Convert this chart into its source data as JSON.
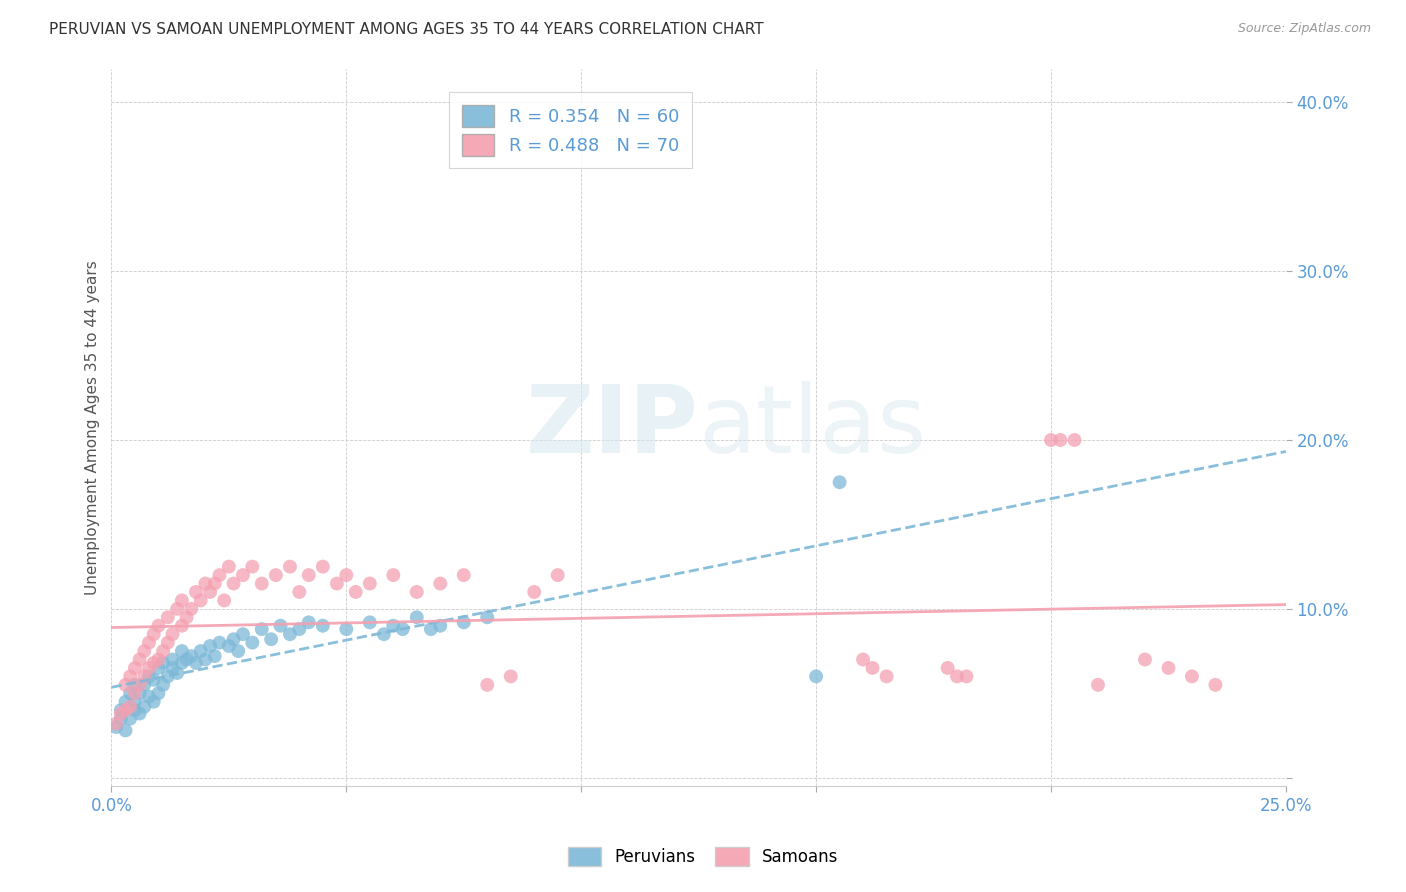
{
  "title": "PERUVIAN VS SAMOAN UNEMPLOYMENT AMONG AGES 35 TO 44 YEARS CORRELATION CHART",
  "source": "Source: ZipAtlas.com",
  "ylabel": "Unemployment Among Ages 35 to 44 years",
  "xlim": [
    0.0,
    0.25
  ],
  "ylim": [
    -0.005,
    0.42
  ],
  "x_ticks": [
    0.0,
    0.05,
    0.1,
    0.15,
    0.2,
    0.25
  ],
  "x_tick_labels": [
    "0.0%",
    "",
    "",
    "",
    "",
    "25.0%"
  ],
  "y_ticks": [
    0.0,
    0.1,
    0.2,
    0.3,
    0.4
  ],
  "y_tick_labels": [
    "",
    "10.0%",
    "20.0%",
    "30.0%",
    "40.0%"
  ],
  "peruvian_color": "#7db8d8",
  "samoan_color": "#f4a0b0",
  "peruvian_R": 0.354,
  "peruvian_N": 60,
  "samoan_R": 0.488,
  "samoan_N": 70,
  "watermark_zip": "ZIP",
  "watermark_atlas": "atlas",
  "background_color": "#ffffff",
  "peruvian_x": [
    0.001,
    0.002,
    0.002,
    0.003,
    0.003,
    0.004,
    0.004,
    0.005,
    0.005,
    0.005,
    0.006,
    0.006,
    0.007,
    0.007,
    0.008,
    0.008,
    0.009,
    0.009,
    0.01,
    0.01,
    0.011,
    0.011,
    0.012,
    0.013,
    0.013,
    0.014,
    0.015,
    0.015,
    0.016,
    0.017,
    0.018,
    0.019,
    0.02,
    0.021,
    0.022,
    0.023,
    0.025,
    0.026,
    0.027,
    0.028,
    0.03,
    0.032,
    0.034,
    0.036,
    0.038,
    0.04,
    0.042,
    0.045,
    0.05,
    0.055,
    0.058,
    0.06,
    0.062,
    0.065,
    0.068,
    0.07,
    0.075,
    0.08,
    0.15,
    0.155
  ],
  "peruvian_y": [
    0.03,
    0.035,
    0.04,
    0.028,
    0.045,
    0.035,
    0.05,
    0.04,
    0.045,
    0.055,
    0.038,
    0.05,
    0.042,
    0.055,
    0.048,
    0.06,
    0.045,
    0.058,
    0.05,
    0.065,
    0.055,
    0.068,
    0.06,
    0.065,
    0.07,
    0.062,
    0.068,
    0.075,
    0.07,
    0.072,
    0.068,
    0.075,
    0.07,
    0.078,
    0.072,
    0.08,
    0.078,
    0.082,
    0.075,
    0.085,
    0.08,
    0.088,
    0.082,
    0.09,
    0.085,
    0.088,
    0.092,
    0.09,
    0.088,
    0.092,
    0.085,
    0.09,
    0.088,
    0.095,
    0.088,
    0.09,
    0.092,
    0.095,
    0.06,
    0.175
  ],
  "samoan_x": [
    0.001,
    0.002,
    0.003,
    0.003,
    0.004,
    0.004,
    0.005,
    0.005,
    0.006,
    0.006,
    0.007,
    0.007,
    0.008,
    0.008,
    0.009,
    0.009,
    0.01,
    0.01,
    0.011,
    0.012,
    0.012,
    0.013,
    0.014,
    0.015,
    0.015,
    0.016,
    0.017,
    0.018,
    0.019,
    0.02,
    0.021,
    0.022,
    0.023,
    0.024,
    0.025,
    0.026,
    0.028,
    0.03,
    0.032,
    0.035,
    0.038,
    0.04,
    0.042,
    0.045,
    0.048,
    0.05,
    0.052,
    0.055,
    0.06,
    0.065,
    0.07,
    0.075,
    0.08,
    0.085,
    0.09,
    0.095,
    0.16,
    0.162,
    0.165,
    0.2,
    0.202,
    0.205,
    0.21,
    0.22,
    0.225,
    0.23,
    0.235,
    0.178,
    0.18,
    0.182
  ],
  "samoan_y": [
    0.032,
    0.038,
    0.04,
    0.055,
    0.042,
    0.06,
    0.05,
    0.065,
    0.055,
    0.07,
    0.06,
    0.075,
    0.065,
    0.08,
    0.068,
    0.085,
    0.07,
    0.09,
    0.075,
    0.08,
    0.095,
    0.085,
    0.1,
    0.09,
    0.105,
    0.095,
    0.1,
    0.11,
    0.105,
    0.115,
    0.11,
    0.115,
    0.12,
    0.105,
    0.125,
    0.115,
    0.12,
    0.125,
    0.115,
    0.12,
    0.125,
    0.11,
    0.12,
    0.125,
    0.115,
    0.12,
    0.11,
    0.115,
    0.12,
    0.11,
    0.115,
    0.12,
    0.055,
    0.06,
    0.11,
    0.12,
    0.07,
    0.065,
    0.06,
    0.2,
    0.2,
    0.2,
    0.055,
    0.07,
    0.065,
    0.06,
    0.055,
    0.065,
    0.06,
    0.06
  ]
}
